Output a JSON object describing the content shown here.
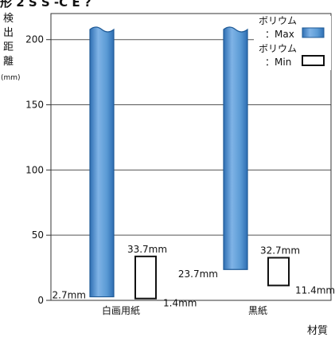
{
  "top_cut_text": "形 2 S S -C E ?",
  "chart_data": {
    "type": "bar",
    "categories": [
      "白画用紙",
      "黒紙"
    ],
    "ylim": [
      0,
      220
    ],
    "y_ticks": [
      "0",
      "50",
      "100",
      "150",
      "200"
    ],
    "ylabel_lines": [
      "検",
      "出",
      "距",
      "離",
      "(mm)"
    ],
    "xlabel": "材質",
    "grid": true,
    "legend_position": "top-right",
    "series": [
      {
        "name": "ボリウム：Max",
        "legend_lines": [
          "ボリウム",
          "：Max"
        ],
        "color": "#5b9bd5",
        "fill": "gradient-blue",
        "truncated_top": true,
        "values": [
          220,
          220
        ],
        "start_values": [
          2.7,
          23.7
        ],
        "start_labels": [
          "2.7mm",
          "23.7mm"
        ]
      },
      {
        "name": "ボリウム：Min",
        "legend_lines": [
          "ボリウム",
          "：Min"
        ],
        "color": "#ffffff",
        "fill": "outline",
        "values": [
          33.7,
          32.7
        ],
        "start_values": [
          1.4,
          11.4
        ],
        "top_labels": [
          "33.7mm",
          "32.7mm"
        ],
        "start_labels": [
          "1.4mm",
          "11.4mm"
        ]
      }
    ]
  }
}
